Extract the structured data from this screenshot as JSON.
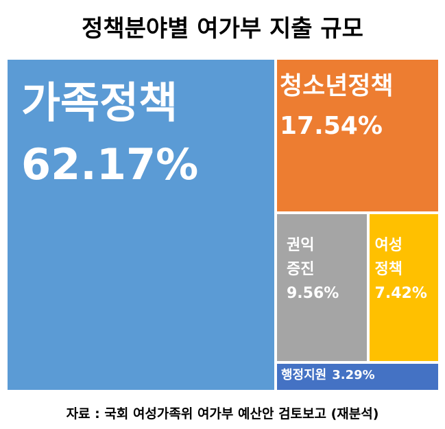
{
  "chart_data": {
    "type": "treemap",
    "title": "정책분야별 여가부 지출 규모",
    "source": "자료 : 국회 여성가족위 여가부 예산안 검토보고 (재분석)",
    "categories": [
      "가족정책",
      "청소년정책",
      "권익\n증진",
      "여성\n정책",
      "행정지원"
    ],
    "values": [
      62.17,
      17.54,
      9.56,
      7.42,
      3.29
    ],
    "value_labels": [
      "62.17%",
      "17.54%",
      "9.56%",
      "7.42%",
      "3.29%"
    ],
    "colors": [
      "#5b9bd5",
      "#ed7d31",
      "#a5a5a5",
      "#ffc000",
      "#4472c4"
    ]
  }
}
